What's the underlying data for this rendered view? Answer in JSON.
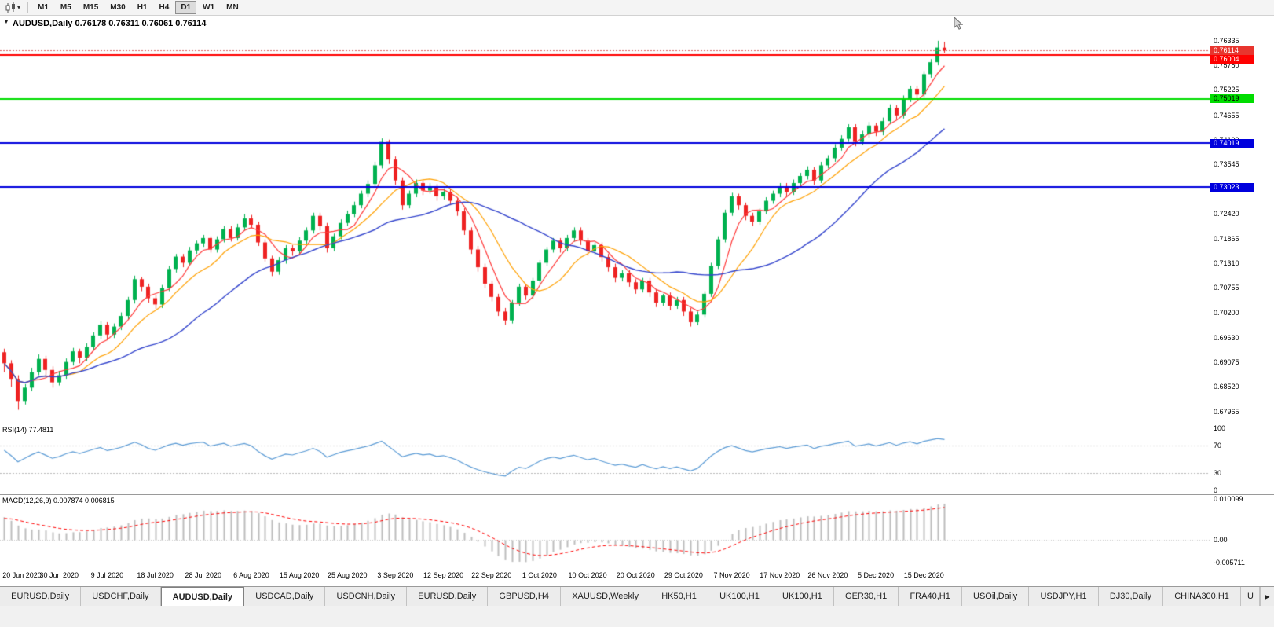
{
  "toolbar": {
    "timeframes": [
      "M1",
      "M5",
      "M15",
      "M30",
      "H1",
      "H4",
      "D1",
      "W1",
      "MN"
    ],
    "active_timeframe": "D1",
    "dropdown_caret": "▾"
  },
  "chart": {
    "title": "AUDUSD,Daily 0.76178 0.76311 0.76061 0.76114",
    "symbol": "AUDUSD",
    "period": "Daily",
    "open": "0.76178",
    "high": "0.76311",
    "low": "0.76061",
    "close": "0.76114",
    "one_click_icon": "▼"
  },
  "price_axis": {
    "bid_line_color": "#d96060",
    "ticks": [
      "0.76335",
      "0.75780",
      "0.75225",
      "0.74655",
      "0.74100",
      "0.73545",
      "0.72990",
      "0.72420",
      "0.71865",
      "0.71310",
      "0.70755",
      "0.70200",
      "0.69630",
      "0.69075",
      "0.68520",
      "0.67965"
    ],
    "markers": [
      {
        "value": 0.76114,
        "label": "0.76114",
        "color": "#e8352e",
        "text": "#ffffff"
      },
      {
        "value": 0.76004,
        "label": "0.76004",
        "color": "#ff0000",
        "text": "#ffffff"
      },
      {
        "value": 0.75019,
        "label": "0.75019",
        "color": "#00dd00",
        "text": "#000000"
      },
      {
        "value": 0.74019,
        "label": "0.74019",
        "color": "#0000dd",
        "text": "#ffffff"
      },
      {
        "value": 0.73023,
        "label": "0.73023",
        "color": "#0000dd",
        "text": "#ffffff"
      }
    ]
  },
  "hlines": [
    {
      "value": 0.76004,
      "color": "#ff0000",
      "width": 2
    },
    {
      "value": 0.75019,
      "color": "#00dd00",
      "width": 2
    },
    {
      "value": 0.74019,
      "color": "#0000dd",
      "width": 2
    },
    {
      "value": 0.73023,
      "color": "#0000dd",
      "width": 2
    }
  ],
  "rsi": {
    "label": "RSI(14) 77.4811",
    "period": 14,
    "value": 77.4811,
    "levels": [
      70,
      30
    ],
    "axis_labels": [
      "100",
      "70",
      "30",
      "0"
    ],
    "color": "#5b9bd5"
  },
  "macd": {
    "label": "MACD(12,26,9) 0.007874 0.006815",
    "fast": 12,
    "slow": 26,
    "signal": 9,
    "macd_value": 0.007874,
    "signal_value": 0.006815,
    "axis_labels": [
      {
        "label": "0.010099",
        "value": 0.010099
      },
      {
        "label": "0.00",
        "value": 0
      },
      {
        "label": "-0.005711",
        "value": -0.005711
      }
    ],
    "ylim": [
      -0.0063,
      0.0106
    ],
    "hist_color": "#bdbdbd",
    "signal_color": "#ff0000"
  },
  "tabs": {
    "items": [
      {
        "label": "EURUSD,Daily",
        "active": false
      },
      {
        "label": "USDCHF,Daily",
        "active": false
      },
      {
        "label": "AUDUSD,Daily",
        "active": true
      },
      {
        "label": "USDCAD,Daily",
        "active": false
      },
      {
        "label": "USDCNH,Daily",
        "active": false
      },
      {
        "label": "EURUSD,Daily",
        "active": false
      },
      {
        "label": "GBPUSD,H4",
        "active": false
      },
      {
        "label": "XAUUSD,Weekly",
        "active": false
      },
      {
        "label": "HK50,H1",
        "active": false
      },
      {
        "label": "UK100,H1",
        "active": false
      },
      {
        "label": "UK100,H1",
        "active": false
      },
      {
        "label": "GER30,H1",
        "active": false
      },
      {
        "label": "FRA40,H1",
        "active": false
      },
      {
        "label": "USOil,Daily",
        "active": false
      },
      {
        "label": "USDJPY,H1",
        "active": false
      },
      {
        "label": "DJ30,Daily",
        "active": false
      },
      {
        "label": "CHINA300,H1",
        "active": false
      }
    ],
    "partial_label": "U",
    "scroll_right_icon": "▶"
  },
  "chart_data": {
    "type": "candlestick",
    "symbol": "AUDUSD",
    "timeframe": "Daily",
    "ylim": [
      0.6769,
      0.769
    ],
    "bars_span": 0.783,
    "first_label_bar": 1,
    "label_every_bars": 7,
    "up_color": "#00b14f",
    "down_color": "#ee2222",
    "x_labels": [
      "20 Jun 2020",
      "30 Jun 2020",
      "9 Jul 2020",
      "18 Jul 2020",
      "28 Jul 2020",
      "6 Aug 2020",
      "15 Aug 2020",
      "25 Aug 2020",
      "3 Sep 2020",
      "12 Sep 2020",
      "22 Sep 2020",
      "1 Oct 2020",
      "10 Oct 2020",
      "20 Oct 2020",
      "29 Oct 2020",
      "7 Nov 2020",
      "17 Nov 2020",
      "26 Nov 2020",
      "5 Dec 2020",
      "15 Dec 2020"
    ],
    "moving_averages": [
      {
        "period": 5,
        "color": "#ff3838",
        "width": 1.2
      },
      {
        "period": 10,
        "color": "#ffa000",
        "width": 1.2
      },
      {
        "period": 25,
        "color": "#3344cc",
        "width": 1.4
      }
    ],
    "ohlc": [
      [
        0.693,
        0.6938,
        0.6885,
        0.6905
      ],
      [
        0.6905,
        0.6912,
        0.6852,
        0.687
      ],
      [
        0.687,
        0.6878,
        0.68,
        0.682
      ],
      [
        0.682,
        0.6858,
        0.6812,
        0.685
      ],
      [
        0.685,
        0.6895,
        0.6842,
        0.6885
      ],
      [
        0.6885,
        0.6925,
        0.6878,
        0.6915
      ],
      [
        0.6915,
        0.6922,
        0.6878,
        0.689
      ],
      [
        0.689,
        0.6898,
        0.685,
        0.6862
      ],
      [
        0.6862,
        0.6888,
        0.6855,
        0.6878
      ],
      [
        0.6878,
        0.6916,
        0.687,
        0.6908
      ],
      [
        0.6908,
        0.694,
        0.69,
        0.6932
      ],
      [
        0.6932,
        0.6938,
        0.6905,
        0.6918
      ],
      [
        0.6918,
        0.695,
        0.691,
        0.6942
      ],
      [
        0.6942,
        0.6975,
        0.6935,
        0.6968
      ],
      [
        0.6968,
        0.7,
        0.696,
        0.6992
      ],
      [
        0.6992,
        0.6998,
        0.6958,
        0.697
      ],
      [
        0.697,
        0.6995,
        0.6962,
        0.6988
      ],
      [
        0.6988,
        0.702,
        0.698,
        0.7012
      ],
      [
        0.7012,
        0.7055,
        0.7005,
        0.7048
      ],
      [
        0.7048,
        0.7103,
        0.704,
        0.7095
      ],
      [
        0.7095,
        0.71,
        0.7068,
        0.7078
      ],
      [
        0.7078,
        0.7085,
        0.7042,
        0.7052
      ],
      [
        0.7052,
        0.706,
        0.7028,
        0.7038
      ],
      [
        0.7038,
        0.7082,
        0.703,
        0.7075
      ],
      [
        0.7075,
        0.7125,
        0.7068,
        0.7118
      ],
      [
        0.7118,
        0.7152,
        0.711,
        0.7146
      ],
      [
        0.7146,
        0.7152,
        0.7122,
        0.7132
      ],
      [
        0.7132,
        0.7168,
        0.7125,
        0.716
      ],
      [
        0.716,
        0.7182,
        0.7152,
        0.7176
      ],
      [
        0.7176,
        0.7195,
        0.7168,
        0.7188
      ],
      [
        0.7188,
        0.7192,
        0.7155,
        0.7162
      ],
      [
        0.7162,
        0.7192,
        0.7155,
        0.7185
      ],
      [
        0.7185,
        0.7215,
        0.7178,
        0.7208
      ],
      [
        0.7208,
        0.7215,
        0.718,
        0.7188
      ],
      [
        0.7188,
        0.722,
        0.7182,
        0.7212
      ],
      [
        0.7212,
        0.7242,
        0.7205,
        0.7232
      ],
      [
        0.7232,
        0.724,
        0.721,
        0.7218
      ],
      [
        0.7218,
        0.7225,
        0.717,
        0.7178
      ],
      [
        0.7178,
        0.7185,
        0.7135,
        0.7142
      ],
      [
        0.7142,
        0.7148,
        0.7102,
        0.7112
      ],
      [
        0.7112,
        0.7145,
        0.7105,
        0.7138
      ],
      [
        0.7138,
        0.7172,
        0.713,
        0.7165
      ],
      [
        0.7165,
        0.7172,
        0.7148,
        0.7158
      ],
      [
        0.7158,
        0.719,
        0.715,
        0.7182
      ],
      [
        0.7182,
        0.7212,
        0.7175,
        0.7205
      ],
      [
        0.7205,
        0.7245,
        0.7198,
        0.7238
      ],
      [
        0.7238,
        0.7245,
        0.7205,
        0.7215
      ],
      [
        0.7215,
        0.7222,
        0.7155,
        0.7165
      ],
      [
        0.7165,
        0.7198,
        0.7158,
        0.7192
      ],
      [
        0.7192,
        0.723,
        0.7185,
        0.7222
      ],
      [
        0.7222,
        0.725,
        0.7215,
        0.7242
      ],
      [
        0.7242,
        0.727,
        0.7235,
        0.7262
      ],
      [
        0.7262,
        0.7295,
        0.7255,
        0.7288
      ],
      [
        0.7288,
        0.7318,
        0.728,
        0.731
      ],
      [
        0.731,
        0.736,
        0.7302,
        0.7352
      ],
      [
        0.7352,
        0.7413,
        0.7345,
        0.7405
      ],
      [
        0.7405,
        0.741,
        0.7355,
        0.7365
      ],
      [
        0.7365,
        0.7372,
        0.7308,
        0.7318
      ],
      [
        0.7318,
        0.7325,
        0.7252,
        0.7262
      ],
      [
        0.7262,
        0.7295,
        0.7255,
        0.7288
      ],
      [
        0.7288,
        0.732,
        0.728,
        0.7312
      ],
      [
        0.7312,
        0.7318,
        0.7285,
        0.7295
      ],
      [
        0.7295,
        0.7312,
        0.7288,
        0.7305
      ],
      [
        0.7305,
        0.731,
        0.7272,
        0.7282
      ],
      [
        0.7282,
        0.73,
        0.7275,
        0.7292
      ],
      [
        0.7292,
        0.7298,
        0.7262,
        0.7272
      ],
      [
        0.7272,
        0.728,
        0.7238,
        0.7248
      ],
      [
        0.7248,
        0.7255,
        0.7195,
        0.7205
      ],
      [
        0.7205,
        0.7212,
        0.7152,
        0.7162
      ],
      [
        0.7162,
        0.717,
        0.7112,
        0.7122
      ],
      [
        0.7122,
        0.713,
        0.7075,
        0.7085
      ],
      [
        0.7085,
        0.7092,
        0.7045,
        0.7055
      ],
      [
        0.7055,
        0.7062,
        0.7012,
        0.7022
      ],
      [
        0.7022,
        0.703,
        0.6992,
        0.7002
      ],
      [
        0.7002,
        0.7048,
        0.6995,
        0.7042
      ],
      [
        0.7042,
        0.7085,
        0.7035,
        0.7078
      ],
      [
        0.7078,
        0.7085,
        0.7048,
        0.7058
      ],
      [
        0.7058,
        0.7098,
        0.705,
        0.7092
      ],
      [
        0.7092,
        0.7138,
        0.7085,
        0.7132
      ],
      [
        0.7132,
        0.7168,
        0.7125,
        0.7162
      ],
      [
        0.7162,
        0.7188,
        0.7155,
        0.7182
      ],
      [
        0.7182,
        0.7188,
        0.7155,
        0.7165
      ],
      [
        0.7165,
        0.7195,
        0.7158,
        0.7188
      ],
      [
        0.7188,
        0.7212,
        0.718,
        0.7205
      ],
      [
        0.7205,
        0.7212,
        0.7172,
        0.7182
      ],
      [
        0.7182,
        0.7188,
        0.7148,
        0.7158
      ],
      [
        0.7158,
        0.7178,
        0.715,
        0.7172
      ],
      [
        0.7172,
        0.7178,
        0.7135,
        0.7145
      ],
      [
        0.7145,
        0.7152,
        0.7112,
        0.7122
      ],
      [
        0.7122,
        0.713,
        0.7088,
        0.7098
      ],
      [
        0.7098,
        0.7115,
        0.709,
        0.7108
      ],
      [
        0.7108,
        0.7115,
        0.7078,
        0.7088
      ],
      [
        0.7088,
        0.7095,
        0.7062,
        0.7072
      ],
      [
        0.7072,
        0.7098,
        0.7065,
        0.7092
      ],
      [
        0.7092,
        0.7098,
        0.7055,
        0.7065
      ],
      [
        0.7065,
        0.7072,
        0.7032,
        0.7042
      ],
      [
        0.7042,
        0.7062,
        0.7035,
        0.7058
      ],
      [
        0.7058,
        0.7065,
        0.7025,
        0.7035
      ],
      [
        0.7035,
        0.7055,
        0.7028,
        0.7048
      ],
      [
        0.7048,
        0.7055,
        0.7012,
        0.7022
      ],
      [
        0.7022,
        0.703,
        0.6988,
        0.6998
      ],
      [
        0.6998,
        0.7022,
        0.6991,
        0.7015
      ],
      [
        0.7015,
        0.7068,
        0.7008,
        0.7062
      ],
      [
        0.7062,
        0.7132,
        0.7055,
        0.7125
      ],
      [
        0.7125,
        0.7192,
        0.7118,
        0.7185
      ],
      [
        0.7185,
        0.7252,
        0.7178,
        0.7245
      ],
      [
        0.7245,
        0.729,
        0.7238,
        0.7282
      ],
      [
        0.7282,
        0.7288,
        0.7252,
        0.7262
      ],
      [
        0.7262,
        0.7268,
        0.7228,
        0.7238
      ],
      [
        0.7238,
        0.7245,
        0.7215,
        0.7225
      ],
      [
        0.7225,
        0.7255,
        0.7218,
        0.7248
      ],
      [
        0.7248,
        0.728,
        0.7242,
        0.7272
      ],
      [
        0.7272,
        0.7295,
        0.7265,
        0.7288
      ],
      [
        0.7288,
        0.7312,
        0.728,
        0.7305
      ],
      [
        0.7305,
        0.7312,
        0.7282,
        0.7292
      ],
      [
        0.7292,
        0.732,
        0.7285,
        0.7312
      ],
      [
        0.7312,
        0.7335,
        0.7305,
        0.7328
      ],
      [
        0.7328,
        0.735,
        0.732,
        0.7342
      ],
      [
        0.7342,
        0.7348,
        0.7308,
        0.7318
      ],
      [
        0.7318,
        0.736,
        0.7312,
        0.7352
      ],
      [
        0.7352,
        0.7375,
        0.7345,
        0.7368
      ],
      [
        0.7368,
        0.74,
        0.736,
        0.7392
      ],
      [
        0.7392,
        0.742,
        0.7385,
        0.7412
      ],
      [
        0.7412,
        0.7445,
        0.7405,
        0.7438
      ],
      [
        0.7438,
        0.7445,
        0.7395,
        0.7405
      ],
      [
        0.7405,
        0.743,
        0.7398,
        0.7422
      ],
      [
        0.7422,
        0.745,
        0.7415,
        0.7442
      ],
      [
        0.7442,
        0.7448,
        0.7418,
        0.7428
      ],
      [
        0.7428,
        0.746,
        0.742,
        0.7452
      ],
      [
        0.7452,
        0.749,
        0.7445,
        0.7482
      ],
      [
        0.7482,
        0.7488,
        0.7455,
        0.7465
      ],
      [
        0.7465,
        0.751,
        0.7458,
        0.7502
      ],
      [
        0.7502,
        0.7532,
        0.7495,
        0.7525
      ],
      [
        0.7525,
        0.7532,
        0.7502,
        0.7512
      ],
      [
        0.7512,
        0.7565,
        0.7505,
        0.7558
      ],
      [
        0.7558,
        0.7592,
        0.755,
        0.7585
      ],
      [
        0.7585,
        0.76335,
        0.7578,
        0.7618
      ],
      [
        0.76178,
        0.76311,
        0.76061,
        0.76114
      ]
    ]
  }
}
